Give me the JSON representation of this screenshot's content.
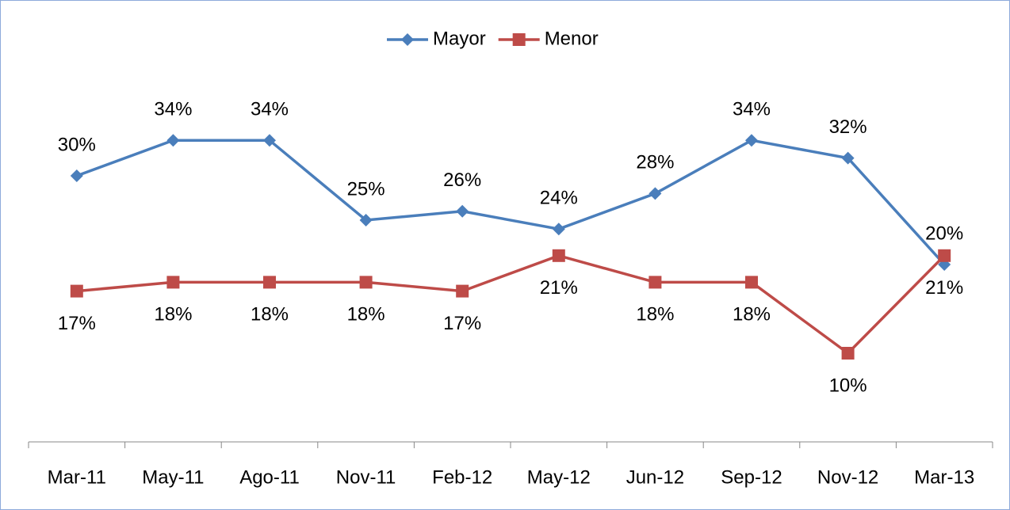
{
  "chart_data": {
    "type": "line",
    "categories": [
      "Mar-11",
      "May-11",
      "Ago-11",
      "Nov-11",
      "Feb-12",
      "May-12",
      "Jun-12",
      "Sep-12",
      "Nov-12",
      "Mar-13"
    ],
    "series": [
      {
        "name": "Mayor",
        "color": "#4a7ebb",
        "marker": "diamond",
        "values": [
          30,
          34,
          34,
          25,
          26,
          24,
          28,
          34,
          32,
          20
        ],
        "value_labels": [
          "30%",
          "34%",
          "34%",
          "25%",
          "26%",
          "24%",
          "28%",
          "34%",
          "32%",
          "20%"
        ]
      },
      {
        "name": "Menor",
        "color": "#be4b48",
        "marker": "square",
        "values": [
          17,
          18,
          18,
          18,
          17,
          21,
          18,
          18,
          10,
          21
        ],
        "value_labels": [
          "17%",
          "18%",
          "18%",
          "18%",
          "17%",
          "21%",
          "18%",
          "18%",
          "10%",
          "21%"
        ]
      }
    ],
    "ylim": [
      0,
      45
    ],
    "legend": "top"
  }
}
